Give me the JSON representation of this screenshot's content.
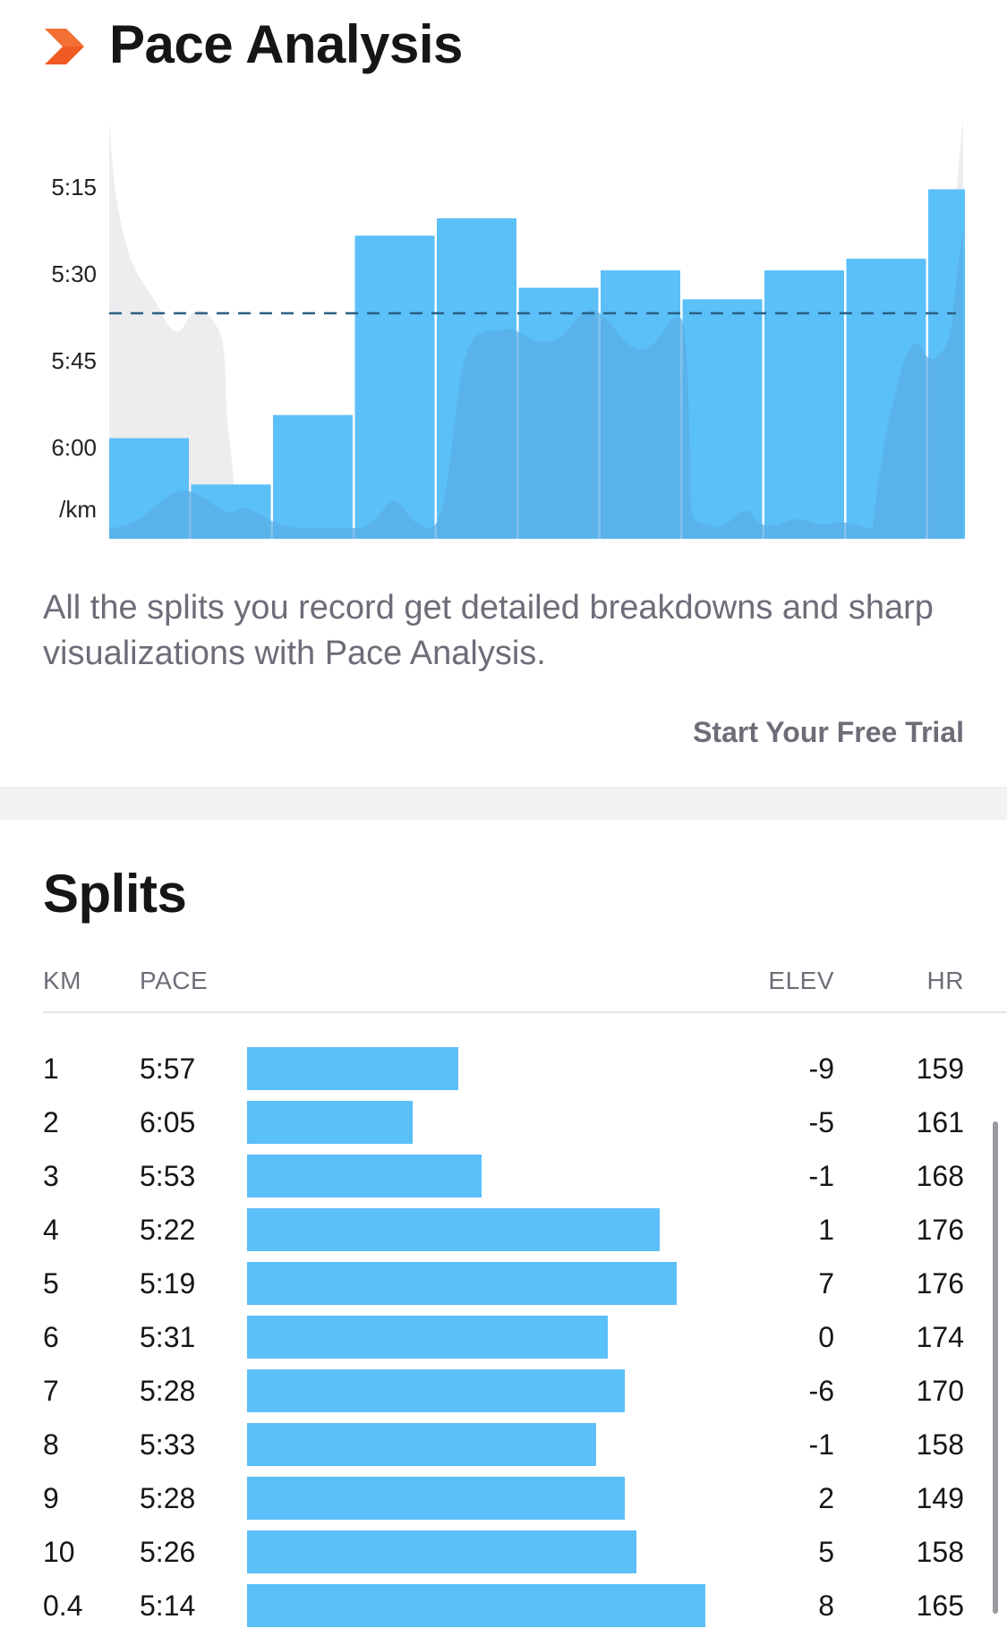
{
  "header": {
    "title": "Pace Analysis",
    "icon": "chevron-right-icon",
    "icon_color": "#f05a22"
  },
  "chart_data": {
    "type": "bar",
    "categories": [
      "1",
      "2",
      "3",
      "4",
      "5",
      "6",
      "7",
      "8",
      "9",
      "10",
      "0.4"
    ],
    "series": [
      {
        "values": [
          "5:57",
          "6:05",
          "5:53",
          "5:22",
          "5:19",
          "5:31",
          "5:28",
          "5:33",
          "5:28",
          "5:26",
          "5:14"
        ]
      }
    ],
    "y_tick_labels": [
      "5:15",
      "5:30",
      "5:45",
      "6:00"
    ],
    "y_unit_label": "/km",
    "average_line": "dashed horizontal line near 5:35",
    "elevation_profile": "grey and darker blue area overlay behind bars",
    "bar_color": "#5bbff8",
    "grid": false
  },
  "description": "All the splits you record get detailed breakdowns and sharp visualizations with Pace Analysis.",
  "cta": {
    "label": "Start Your Free Trial"
  },
  "splits": {
    "title": "Splits",
    "columns": {
      "km": "KM",
      "pace": "PACE",
      "elev": "ELEV",
      "hr": "HR"
    },
    "bar_color": "#5bbff8",
    "rows": [
      {
        "km": "1",
        "pace": "5:57",
        "elev": "-9",
        "hr": "159"
      },
      {
        "km": "2",
        "pace": "6:05",
        "elev": "-5",
        "hr": "161"
      },
      {
        "km": "3",
        "pace": "5:53",
        "elev": "-1",
        "hr": "168"
      },
      {
        "km": "4",
        "pace": "5:22",
        "elev": "1",
        "hr": "176"
      },
      {
        "km": "5",
        "pace": "5:19",
        "elev": "7",
        "hr": "176"
      },
      {
        "km": "6",
        "pace": "5:31",
        "elev": "0",
        "hr": "174"
      },
      {
        "km": "7",
        "pace": "5:28",
        "elev": "-6",
        "hr": "170"
      },
      {
        "km": "8",
        "pace": "5:33",
        "elev": "-1",
        "hr": "158"
      },
      {
        "km": "9",
        "pace": "5:28",
        "elev": "2",
        "hr": "149"
      },
      {
        "km": "10",
        "pace": "5:26",
        "elev": "5",
        "hr": "158"
      },
      {
        "km": "0.4",
        "pace": "5:14",
        "elev": "8",
        "hr": "165"
      }
    ]
  }
}
